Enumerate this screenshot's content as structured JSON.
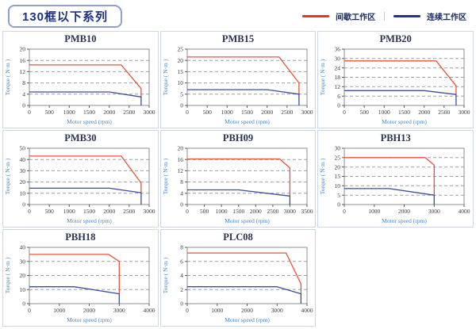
{
  "header": {
    "title": "130框以下系列",
    "legend": {
      "items": [
        {
          "label": "间歇工作区",
          "color": "#e0391d"
        },
        {
          "label": "连续工作区",
          "color": "#1c3a7c"
        }
      ],
      "separator": "|"
    }
  },
  "colors": {
    "intermittent_line": "#e8533c",
    "continuous_line": "#3c4e9a",
    "gridline": "#9aa0a6",
    "axis_box": "#8a8f94",
    "panel_border": "#ccd8ea",
    "header_title_text": "#1d2f7e",
    "axis_label_text": "#4a86c8"
  },
  "chart_data": [
    {
      "type": "line",
      "title": "PMB10",
      "xlabel": "Motor speed (rpm)",
      "ylabel": "Torque ( N·m )",
      "xlim": [
        0,
        3000
      ],
      "ylim": [
        0,
        20
      ],
      "xticks": [
        0,
        500,
        1000,
        1500,
        2000,
        2500,
        3000
      ],
      "yticks": [
        0,
        4,
        8,
        12,
        16,
        20
      ],
      "grid": "horizontal-dashed",
      "legend_position": "page-top-right",
      "series": [
        {
          "name": "间歇工作区",
          "color": "#e8533c",
          "points": [
            [
              0,
              14.4
            ],
            [
              2300,
              14.4
            ],
            [
              2800,
              6
            ],
            [
              2800,
              3
            ]
          ]
        },
        {
          "name": "连续工作区",
          "color": "#3c4e9a",
          "points": [
            [
              0,
              4.8
            ],
            [
              2000,
              4.8
            ],
            [
              2800,
              3
            ],
            [
              2800,
              0
            ]
          ]
        }
      ]
    },
    {
      "type": "line",
      "title": "PMB15",
      "xlabel": "Motor speed (rpm)",
      "ylabel": "Torque ( N·m )",
      "xlim": [
        0,
        3000
      ],
      "ylim": [
        0,
        25
      ],
      "xticks": [
        0,
        500,
        1000,
        1500,
        2000,
        2500,
        3000
      ],
      "yticks": [
        0,
        5,
        10,
        15,
        20,
        25
      ],
      "grid": "horizontal-dashed",
      "legend_position": "page-top-right",
      "series": [
        {
          "name": "间歇工作区",
          "color": "#e8533c",
          "points": [
            [
              0,
              21.5
            ],
            [
              2300,
              21.5
            ],
            [
              2800,
              10
            ],
            [
              2800,
              5
            ]
          ]
        },
        {
          "name": "连续工作区",
          "color": "#3c4e9a",
          "points": [
            [
              0,
              7
            ],
            [
              2000,
              7
            ],
            [
              2800,
              5
            ],
            [
              2800,
              0
            ]
          ]
        }
      ]
    },
    {
      "type": "line",
      "title": "PMB20",
      "xlabel": "Motor speed (rpm)",
      "ylabel": "Torque ( N·m )",
      "xlim": [
        0,
        3000
      ],
      "ylim": [
        0,
        36
      ],
      "xticks": [
        0,
        500,
        1000,
        1500,
        2000,
        2500,
        3000
      ],
      "yticks": [
        0,
        6,
        12,
        18,
        24,
        30,
        36
      ],
      "grid": "horizontal-dashed",
      "legend_position": "page-top-right",
      "series": [
        {
          "name": "间歇工作区",
          "color": "#e8533c",
          "points": [
            [
              0,
              28.5
            ],
            [
              2300,
              28.5
            ],
            [
              2800,
              12.5
            ],
            [
              2800,
              7
            ]
          ]
        },
        {
          "name": "连续工作区",
          "color": "#3c4e9a",
          "points": [
            [
              0,
              9.5
            ],
            [
              2000,
              9.5
            ],
            [
              2800,
              7
            ],
            [
              2800,
              0
            ]
          ]
        }
      ]
    },
    {
      "type": "line",
      "title": "PMB30",
      "xlabel": "Motor speed (rpm)",
      "ylabel": "Torque ( N·m )",
      "xlim": [
        0,
        3000
      ],
      "ylim": [
        0,
        50
      ],
      "xticks": [
        0,
        500,
        1000,
        1500,
        2000,
        2500,
        3000
      ],
      "yticks": [
        0,
        10,
        20,
        30,
        40,
        50
      ],
      "grid": "horizontal-dashed",
      "legend_position": "page-top-right",
      "series": [
        {
          "name": "间歇工作区",
          "color": "#e8533c",
          "points": [
            [
              0,
              43
            ],
            [
              2300,
              43
            ],
            [
              2800,
              19
            ],
            [
              2800,
              10.5
            ]
          ]
        },
        {
          "name": "连续工作区",
          "color": "#3c4e9a",
          "points": [
            [
              0,
              14.5
            ],
            [
              2000,
              14.5
            ],
            [
              2800,
              10.5
            ],
            [
              2800,
              0
            ]
          ]
        }
      ]
    },
    {
      "type": "line",
      "title": "PBH09",
      "xlabel": "Motor speed (rpm)",
      "ylabel": "Torque ( N·m )",
      "xlim": [
        0,
        3500
      ],
      "ylim": [
        0,
        20
      ],
      "xticks": [
        0,
        500,
        1000,
        1500,
        2000,
        2500,
        3000,
        3500
      ],
      "yticks": [
        0,
        4,
        8,
        12,
        16,
        20
      ],
      "grid": "horizontal-dashed",
      "legend_position": "page-top-right",
      "series": [
        {
          "name": "间歇工作区",
          "color": "#e8533c",
          "points": [
            [
              0,
              16.2
            ],
            [
              2700,
              16.2
            ],
            [
              3000,
              13
            ],
            [
              3000,
              3
            ]
          ]
        },
        {
          "name": "连续工作区",
          "color": "#3c4e9a",
          "points": [
            [
              0,
              5.2
            ],
            [
              1500,
              5.2
            ],
            [
              3000,
              3
            ],
            [
              3000,
              0
            ]
          ]
        }
      ]
    },
    {
      "type": "line",
      "title": "PBH13",
      "xlabel": "Motor speed (rpm)",
      "ylabel": "Torque ( N·m )",
      "xlim": [
        0,
        4000
      ],
      "ylim": [
        0,
        30
      ],
      "xticks": [
        0,
        1000,
        2000,
        3000,
        4000
      ],
      "yticks": [
        0,
        5,
        10,
        15,
        20,
        25,
        30
      ],
      "grid": "horizontal-dashed",
      "legend_position": "page-top-right",
      "series": [
        {
          "name": "间歇工作区",
          "color": "#e8533c",
          "points": [
            [
              0,
              25
            ],
            [
              2700,
              25
            ],
            [
              3000,
              21
            ],
            [
              3000,
              5
            ]
          ]
        },
        {
          "name": "连续工作区",
          "color": "#3c4e9a",
          "points": [
            [
              0,
              8.5
            ],
            [
              1500,
              8.5
            ],
            [
              3000,
              5
            ],
            [
              3000,
              0
            ]
          ]
        }
      ]
    },
    {
      "type": "line",
      "title": "PBH18",
      "xlabel": "Motor speed (rpm)",
      "ylabel": "Torque ( N·m )",
      "xlim": [
        0,
        4000
      ],
      "ylim": [
        0,
        40
      ],
      "xticks": [
        0,
        1000,
        2000,
        3000,
        4000
      ],
      "yticks": [
        0,
        10,
        20,
        30,
        40
      ],
      "grid": "horizontal-dashed",
      "legend_position": "page-top-right",
      "series": [
        {
          "name": "间歇工作区",
          "color": "#e8533c",
          "points": [
            [
              0,
              35
            ],
            [
              2650,
              35
            ],
            [
              3000,
              30
            ],
            [
              3000,
              7
            ]
          ]
        },
        {
          "name": "连续工作区",
          "color": "#3c4e9a",
          "points": [
            [
              0,
              12
            ],
            [
              1500,
              12
            ],
            [
              3000,
              7
            ],
            [
              3000,
              0
            ]
          ]
        }
      ]
    },
    {
      "type": "line",
      "title": "PLC08",
      "xlabel": "Motor speed (rpm)",
      "ylabel": "Torque ( N·m )",
      "xlim": [
        0,
        4000
      ],
      "ylim": [
        0,
        8
      ],
      "xticks": [
        0,
        1000,
        2000,
        3000,
        4000
      ],
      "yticks": [
        0,
        2,
        4,
        6,
        8
      ],
      "grid": "horizontal-dashed",
      "legend_position": "page-top-right",
      "series": [
        {
          "name": "间歇工作区",
          "color": "#e8533c",
          "points": [
            [
              0,
              7.2
            ],
            [
              3300,
              7.2
            ],
            [
              3800,
              2.8
            ],
            [
              3800,
              1.4
            ]
          ]
        },
        {
          "name": "连续工作区",
          "color": "#3c4e9a",
          "points": [
            [
              0,
              2.4
            ],
            [
              3000,
              2.4
            ],
            [
              3800,
              1.4
            ],
            [
              3800,
              0
            ]
          ]
        }
      ]
    }
  ]
}
